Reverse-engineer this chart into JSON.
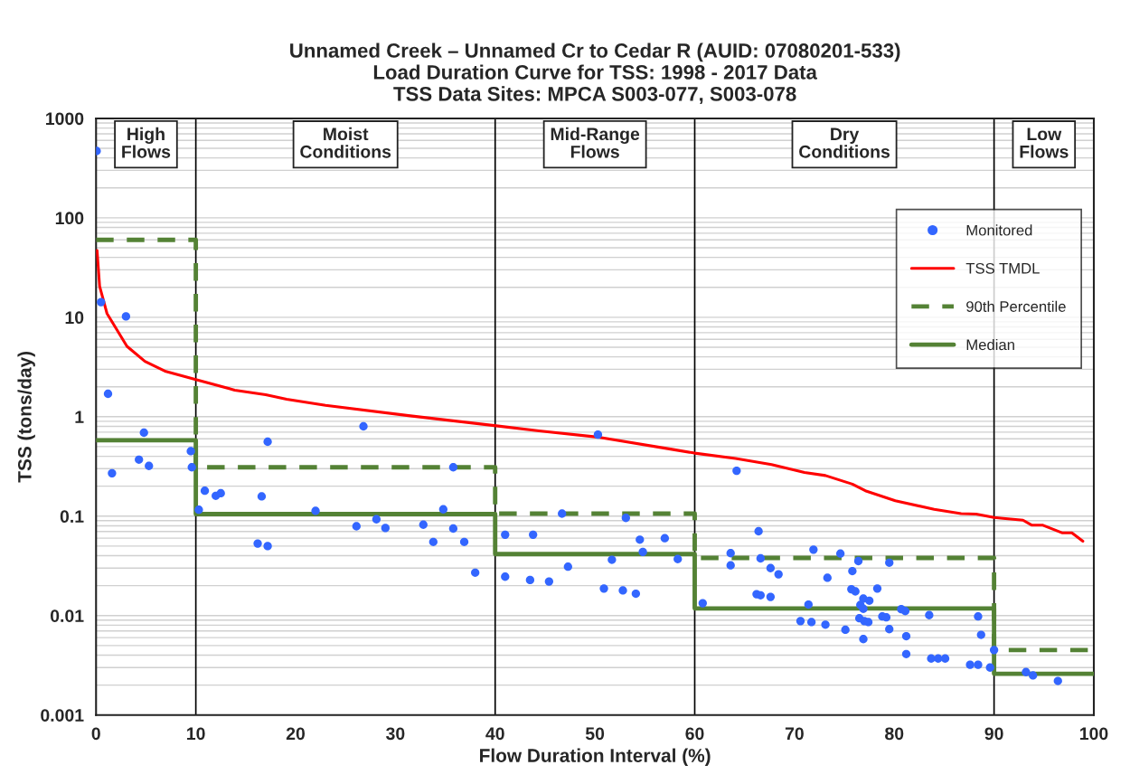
{
  "chart_data": {
    "type": "scatter",
    "title": "Unnamed Creek – Unnamed Cr to Cedar R (AUID: 07080201-533)",
    "subtitle": "Load Duration Curve for TSS: 1998 - 2017 Data\nTSS Data Sites: MPCA S003-077, S003-078",
    "xlabel": "Flow Duration Interval (%)",
    "ylabel": "TSS (tons/day)",
    "log": "y",
    "grid": "y",
    "legend": "top right",
    "xlim": [
      0,
      100
    ],
    "xticks": [
      0,
      10,
      20,
      30,
      40,
      50,
      60,
      70,
      80,
      90,
      100
    ],
    "ylim": [
      0.001,
      1000
    ],
    "yticks": [
      {
        "value": 0.001,
        "label": "0.001"
      },
      {
        "value": 0.01,
        "label": "0.01"
      },
      {
        "value": 0.1,
        "label": "0.1"
      },
      {
        "value": 1,
        "label": "1"
      },
      {
        "value": 10,
        "label": "10"
      },
      {
        "value": 100,
        "label": "100"
      },
      {
        "value": 1000,
        "label": "1000"
      }
    ],
    "ref_lines": [
      {
        "axis": "x",
        "value": 10,
        "color": "#000000"
      },
      {
        "axis": "x",
        "value": 40,
        "color": "#000000"
      },
      {
        "axis": "x",
        "value": 60,
        "color": "#000000"
      },
      {
        "axis": "x",
        "value": 90,
        "color": "#000000"
      }
    ],
    "annotations": [
      "High\nFlows",
      "Moist\nConditions",
      "Mid-Range\nFlows",
      "Dry\nConditions",
      "Low\nFlows"
    ],
    "series": [
      {
        "name": "Monitored",
        "marker": "circle",
        "color": "#3366ff",
        "x": [
          0.06,
          0.5,
          3.0,
          1.2,
          4.8,
          26.8,
          17.2,
          9.5,
          4.3,
          5.3,
          9.6,
          35.8,
          1.6,
          10.9,
          12.0,
          12.5,
          16.6,
          10.3,
          22.0,
          34.8,
          26.1,
          28.1,
          29.0,
          32.8,
          35.8,
          33.8,
          36.9,
          16.2,
          17.2,
          38.0,
          50.3,
          64.2,
          46.7,
          53.1,
          41.0,
          43.8,
          54.5,
          57.0,
          54.8,
          51.7,
          58.3,
          66.4,
          63.6,
          66.6,
          63.6,
          67.6,
          68.4,
          71.9,
          74.6,
          73.3,
          47.3,
          41.0,
          43.5,
          45.4,
          50.9,
          52.8,
          54.1,
          60.8,
          66.2,
          66.6,
          67.6,
          71.4,
          70.6,
          71.7,
          73.1,
          75.1,
          76.4,
          79.5,
          75.8,
          75.7,
          76.1,
          78.3,
          76.9,
          77.5,
          76.6,
          76.9,
          80.7,
          81.1,
          76.5,
          77.0,
          77.4,
          78.8,
          79.2,
          83.5,
          88.4,
          79.5,
          81.2,
          88.7,
          76.9,
          81.2,
          83.7,
          84.4,
          85.1,
          87.6,
          88.4,
          89.6,
          90.0,
          93.2,
          93.9,
          96.4
        ],
        "values": [
          470,
          14.2,
          10.2,
          1.7,
          0.69,
          0.8,
          0.56,
          0.45,
          0.37,
          0.32,
          0.31,
          0.31,
          0.27,
          0.18,
          0.16,
          0.17,
          0.158,
          0.116,
          0.113,
          0.117,
          0.079,
          0.093,
          0.076,
          0.082,
          0.075,
          0.055,
          0.055,
          0.053,
          0.05,
          0.027,
          0.66,
          0.286,
          0.106,
          0.096,
          0.065,
          0.065,
          0.058,
          0.06,
          0.0436,
          0.0364,
          0.037,
          0.0705,
          0.0424,
          0.0376,
          0.032,
          0.03,
          0.026,
          0.046,
          0.042,
          0.024,
          0.031,
          0.0246,
          0.0228,
          0.022,
          0.0187,
          0.0179,
          0.0166,
          0.0133,
          0.0164,
          0.016,
          0.0154,
          0.0129,
          0.0088,
          0.0086,
          0.0081,
          0.0072,
          0.0353,
          0.034,
          0.028,
          0.0184,
          0.0175,
          0.0187,
          0.0148,
          0.0141,
          0.0128,
          0.0117,
          0.0116,
          0.0111,
          0.0094,
          0.0088,
          0.0086,
          0.0098,
          0.0096,
          0.0101,
          0.0098,
          0.0073,
          0.0062,
          0.0064,
          0.0058,
          0.0041,
          0.0037,
          0.0037,
          0.0037,
          0.0032,
          0.0032,
          0.003,
          0.0045,
          0.0027,
          0.0025,
          0.0022
        ]
      },
      {
        "name": "TSS TMDL",
        "type": "line",
        "line_style": "solid",
        "color": "#ff0000",
        "x": [
          0.1,
          0.36,
          1.1,
          3.1,
          4.9,
          7.0,
          10.0,
          13.9,
          17.0,
          19.1,
          23.0,
          31.5,
          40.1,
          44.4,
          50.5,
          57.7,
          60.0,
          64.1,
          67.7,
          71.0,
          73.1,
          75.8,
          77.1,
          80.1,
          84.0,
          86.7,
          88.2,
          90.0,
          90.9,
          92.9,
          93.8,
          94.9,
          96.8,
          97.8,
          98.9
        ],
        "values": [
          47,
          20.5,
          10.9,
          5.1,
          3.6,
          2.85,
          2.36,
          1.85,
          1.66,
          1.5,
          1.3,
          1.02,
          0.81,
          0.72,
          0.62,
          0.47,
          0.43,
          0.38,
          0.33,
          0.275,
          0.256,
          0.21,
          0.18,
          0.143,
          0.117,
          0.106,
          0.105,
          0.097,
          0.095,
          0.091,
          0.081,
          0.081,
          0.068,
          0.068,
          0.056
        ]
      },
      {
        "name": "90th Percentile",
        "type": "step",
        "line_style": "dashed",
        "color": "#548235",
        "x": [
          0,
          10,
          40,
          60,
          90,
          100
        ],
        "values": [
          60,
          0.31,
          0.106,
          0.038,
          0.0045,
          0.0045
        ]
      },
      {
        "name": "Median",
        "type": "step",
        "line_style": "solid",
        "color": "#548235",
        "x": [
          0,
          10,
          40,
          60,
          90,
          100
        ],
        "values": [
          0.58,
          0.105,
          0.0415,
          0.0118,
          0.0026,
          0.0026
        ]
      }
    ]
  }
}
